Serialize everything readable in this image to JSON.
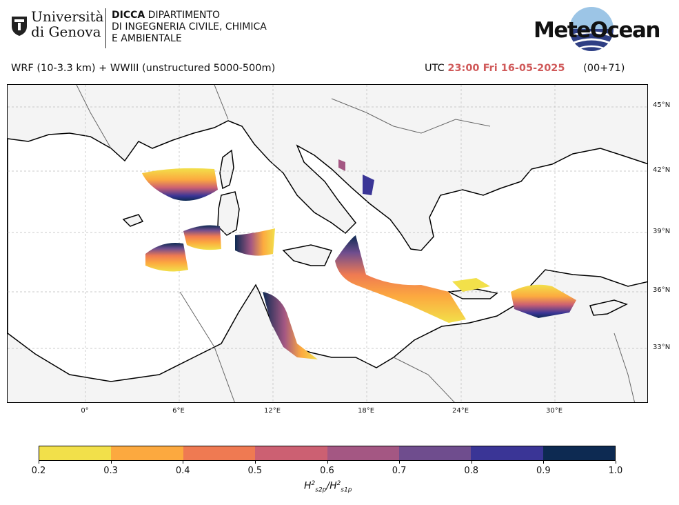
{
  "header": {
    "university": {
      "line1": "Università",
      "line2": "di Genova"
    },
    "department": {
      "acronym": "DICCA",
      "line1_rest": " DIPARTIMENTO",
      "line2": "DI INGEGNERIA CIVILE, CHIMICA",
      "line3": "E AMBIENTALE"
    },
    "brand": "MeteOcean"
  },
  "model_label": "WRF (10-3.3 km) + WWIII (unstructured 5000-500m)",
  "utc": {
    "prefix": "UTC",
    "time": "23:00 Fri 16-05-2025",
    "lead": "(00+71)"
  },
  "map": {
    "lat_labels": [
      "45°N",
      "42°N",
      "39°N",
      "36°N",
      "33°N"
    ],
    "lon_labels": [
      "0°",
      "6°E",
      "12°E",
      "18°E",
      "24°E",
      "30°E"
    ],
    "land_color": "#f4f4f4",
    "sea_color": "#ffffff"
  },
  "colorbar": {
    "ticks": [
      "0.2",
      "0.3",
      "0.4",
      "0.5",
      "0.6",
      "0.7",
      "0.8",
      "0.9",
      "1.0"
    ],
    "colors": [
      "#f2e04a",
      "#fca93f",
      "#ef7a52",
      "#cc6072",
      "#a45783",
      "#6f4d8e",
      "#3a3596",
      "#0d2a52"
    ],
    "label_main": "H",
    "label_num_sub": "s2p",
    "label_den_sub": "s1p",
    "label_sup": "2"
  }
}
